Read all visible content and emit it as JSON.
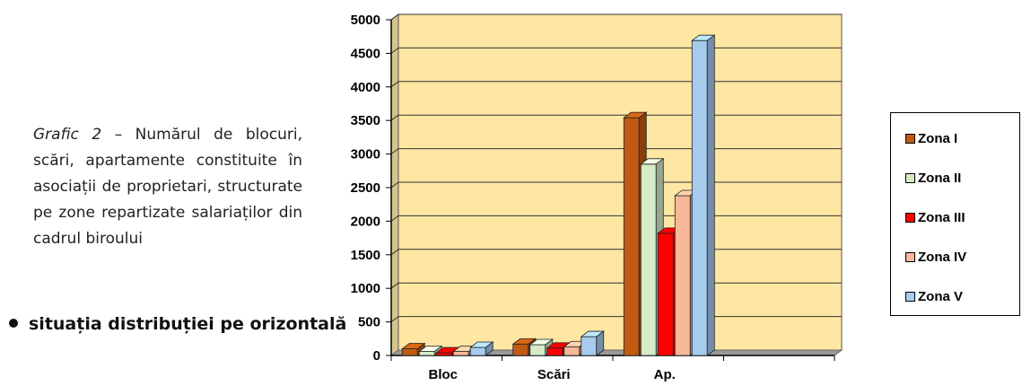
{
  "caption": {
    "italic": "Grafic 2",
    "text": " – Numărul de blocuri, scări, apartamente constituite în asociații de proprietari, structurate pe zone repartizate salariaților din cadrul biroului"
  },
  "bullet_text": "situația distribuției pe orizontală",
  "chart_data": {
    "type": "bar",
    "categories": [
      "Bloc",
      "Scări",
      "Ap."
    ],
    "series": [
      {
        "name": "Zona I",
        "values": [
          100,
          170,
          3540
        ],
        "color": "#C05A12"
      },
      {
        "name": "Zona II",
        "values": [
          60,
          160,
          2850
        ],
        "color": "#D6EBC8"
      },
      {
        "name": "Zona III",
        "values": [
          40,
          110,
          1820
        ],
        "color": "#FF0000"
      },
      {
        "name": "Zona IV",
        "values": [
          60,
          130,
          2380
        ],
        "color": "#F7B99A"
      },
      {
        "name": "Zona V",
        "values": [
          120,
          280,
          4690
        ],
        "color": "#A6CBEF"
      }
    ],
    "yticks": [
      "0",
      "500",
      "1000",
      "1500",
      "2000",
      "2500",
      "3000",
      "3500",
      "4000",
      "4500",
      "5000"
    ],
    "ylim": [
      0,
      5000
    ],
    "grid": true,
    "legend": "right",
    "background_color": "#FDE7A3"
  }
}
